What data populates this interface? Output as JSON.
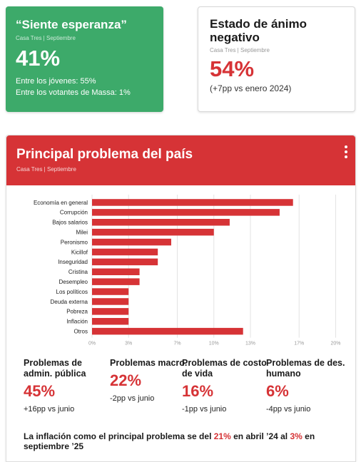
{
  "card_hope": {
    "title": "“Siente esperanza”",
    "source": "Casa Tres | Septiembre",
    "value": "41%",
    "line1": "Entre los jóvenes: 55%",
    "line2": "Entre los votantes de Massa: 1%"
  },
  "card_mood": {
    "title": "Estado de ánimo negativo",
    "source": "Casa Tres | Septiembre",
    "value": "54%",
    "note": "(+7pp vs enero 2024)"
  },
  "panel": {
    "title": "Principal problema del país",
    "source": "Casa Tres | Septiembre"
  },
  "colors": {
    "accent": "#d63336",
    "green": "#3daa6a",
    "grid": "#e3e3e3"
  },
  "chart_data": {
    "type": "bar",
    "orientation": "horizontal",
    "categories": [
      "Economía en general",
      "Corrupción",
      "Bajos salarios",
      "Milei",
      "Peronismo",
      "Kicillof",
      "Inseguridad",
      "Cristina",
      "Desempleo",
      "Los políticos",
      "Deuda externa",
      "Pobreza",
      "Inflación",
      "Otros"
    ],
    "values": [
      16.5,
      15.4,
      11.3,
      10.0,
      6.5,
      5.4,
      5.4,
      3.9,
      3.9,
      3.0,
      3.0,
      3.0,
      3.0,
      12.4
    ],
    "xticks": [
      "0%",
      "3%",
      "7%",
      "10%",
      "13%",
      "17%",
      "20%"
    ],
    "xlim": [
      0,
      20.5
    ],
    "grid": true
  },
  "stats": [
    {
      "label": "Problemas de admin. pública",
      "pct": "45%",
      "delta": "+16pp vs junio"
    },
    {
      "label": "Problemas macro.",
      "pct": "22%",
      "delta": "-2pp vs junio"
    },
    {
      "label": "Problemas de costo de vida",
      "pct": "16%",
      "delta": "-1pp vs junio"
    },
    {
      "label": "Problemas de des. humano",
      "pct": "6%",
      "delta": "-4pp vs junio"
    }
  ],
  "footer": {
    "part1": "La inflación como el principal problema se del ",
    "value1": "21%",
    "part2": " en abril ’24 al ",
    "value2": "3%",
    "part3": " en septiembre ’25"
  }
}
